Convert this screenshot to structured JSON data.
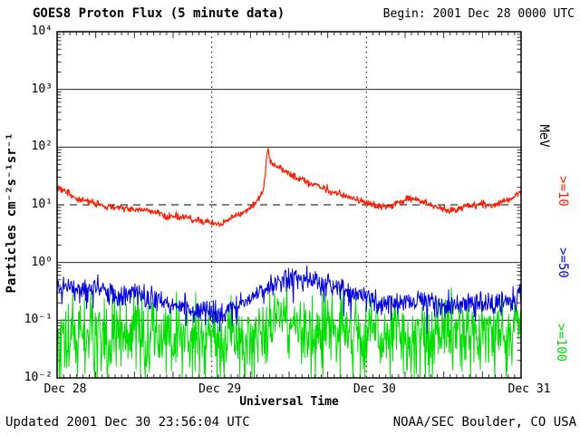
{
  "header": {
    "title": "GOES8 Proton Flux (5 minute data)",
    "begin_label": "Begin: 2001 Dec 28 0000 UTC"
  },
  "footer": {
    "updated_label": "Updated 2001 Dec 30 23:56:04 UTC",
    "credit_label": "NOAA/SEC Boulder, CO USA"
  },
  "axes": {
    "x_label": "Universal Time",
    "y_label": "Particles cm⁻²s⁻¹sr⁻¹"
  },
  "right_axis": {
    "unit": "MeV",
    "labels": [
      {
        "text": ">=10",
        "color": "#fe1b00"
      },
      {
        "text": ">=50",
        "color": "#0000dd"
      },
      {
        "text": ">=100",
        "color": "#00dd00"
      }
    ]
  },
  "chart_data": {
    "type": "line",
    "title": "GOES8 Proton Flux (5 minute data)",
    "xlabel": "Universal Time",
    "ylabel": "Particles cm-2 s-1 sr-1 (log scale)",
    "x_unit": "hours since 2001 Dec 28 0000 UTC",
    "xlim": [
      0,
      72
    ],
    "ylim_log10": [
      -2,
      4
    ],
    "samples_per_hour": 12,
    "grid": true,
    "threshold": {
      "value": 10,
      "style": "dashed"
    },
    "day_lines_hours": [
      24,
      48
    ],
    "x_ticks": [
      {
        "hour": 0,
        "label": "Dec 28"
      },
      {
        "hour": 24,
        "label": "Dec 29"
      },
      {
        "hour": 48,
        "label": "Dec 30"
      },
      {
        "hour": 72,
        "label": "Dec 31"
      }
    ],
    "y_ticks": [
      {
        "exp": 4,
        "label": "10⁴"
      },
      {
        "exp": 3,
        "label": "10³"
      },
      {
        "exp": 2,
        "label": "10²"
      },
      {
        "exp": 1,
        "label": "10¹"
      },
      {
        "exp": 0,
        "label": "10⁰"
      },
      {
        "exp": -1,
        "label": "10⁻¹"
      },
      {
        "exp": -2,
        "label": "10⁻²"
      }
    ],
    "series": [
      {
        "name": ">=10 MeV",
        "color": "#fe1b00",
        "width": 1.2,
        "floor": 0.001,
        "cap": 9000,
        "noise": {
          "sigma_log10": 0.03,
          "spike_p": 0,
          "spike_mag": 0
        },
        "points": [
          [
            0,
            20
          ],
          [
            1,
            17
          ],
          [
            2,
            15
          ],
          [
            3,
            13
          ],
          [
            4,
            12
          ],
          [
            5,
            11
          ],
          [
            6,
            10.5
          ],
          [
            7,
            10
          ],
          [
            8,
            9.5
          ],
          [
            9,
            9
          ],
          [
            10,
            9
          ],
          [
            11,
            8.5
          ],
          [
            12,
            8
          ],
          [
            13,
            8.5
          ],
          [
            14,
            8
          ],
          [
            15,
            7.5
          ],
          [
            16,
            7
          ],
          [
            17,
            6.5
          ],
          [
            18,
            6.5
          ],
          [
            19,
            6
          ],
          [
            20,
            6
          ],
          [
            21,
            5.5
          ],
          [
            22,
            5.5
          ],
          [
            23,
            5
          ],
          [
            24,
            5
          ],
          [
            25,
            4.6
          ],
          [
            25.5,
            4.4
          ],
          [
            26,
            5
          ],
          [
            26.5,
            5.5
          ],
          [
            27,
            6
          ],
          [
            28,
            6.5
          ],
          [
            29,
            7.5
          ],
          [
            30,
            9
          ],
          [
            30.5,
            10
          ],
          [
            31,
            12
          ],
          [
            31.5,
            14
          ],
          [
            32,
            18
          ],
          [
            32.3,
            30
          ],
          [
            32.6,
            95
          ],
          [
            32.9,
            70
          ],
          [
            33.2,
            55
          ],
          [
            33.6,
            50
          ],
          [
            34,
            46
          ],
          [
            34.5,
            42
          ],
          [
            35,
            40
          ],
          [
            35.5,
            38
          ],
          [
            36,
            36
          ],
          [
            36.5,
            33
          ],
          [
            37,
            30
          ],
          [
            38,
            27
          ],
          [
            39,
            24
          ],
          [
            40,
            22
          ],
          [
            41,
            20
          ],
          [
            42,
            18
          ],
          [
            43,
            16
          ],
          [
            44,
            15
          ],
          [
            45,
            14
          ],
          [
            46,
            13
          ],
          [
            47,
            12
          ],
          [
            48,
            11
          ],
          [
            49,
            10
          ],
          [
            50,
            9.5
          ],
          [
            51,
            9
          ],
          [
            52,
            10
          ],
          [
            53,
            11
          ],
          [
            54,
            12
          ],
          [
            55,
            13
          ],
          [
            56,
            12
          ],
          [
            57,
            11
          ],
          [
            58,
            10
          ],
          [
            59,
            9
          ],
          [
            60,
            8.5
          ],
          [
            61,
            8
          ],
          [
            62,
            8.5
          ],
          [
            63,
            9
          ],
          [
            64,
            10
          ],
          [
            65,
            10
          ],
          [
            66,
            11
          ],
          [
            67,
            10
          ],
          [
            68,
            10
          ],
          [
            69,
            11
          ],
          [
            70,
            12
          ],
          [
            71,
            14
          ],
          [
            72,
            17
          ]
        ]
      },
      {
        "name": ">=50 MeV",
        "color": "#0000dd",
        "width": 1,
        "floor": 0.02,
        "cap": 2,
        "noise": {
          "sigma_log10": 0.1,
          "spike_p": 0.05,
          "spike_mag": 0.35
        },
        "points": [
          [
            0,
            0.4
          ],
          [
            1,
            0.38
          ],
          [
            2,
            0.35
          ],
          [
            3,
            0.33
          ],
          [
            4,
            0.32
          ],
          [
            5,
            0.34
          ],
          [
            6,
            0.35
          ],
          [
            7,
            0.32
          ],
          [
            8,
            0.3
          ],
          [
            9,
            0.27
          ],
          [
            10,
            0.26
          ],
          [
            11,
            0.28
          ],
          [
            12,
            0.3
          ],
          [
            13,
            0.27
          ],
          [
            14,
            0.25
          ],
          [
            15,
            0.22
          ],
          [
            16,
            0.2
          ],
          [
            17,
            0.2
          ],
          [
            18,
            0.19
          ],
          [
            19,
            0.18
          ],
          [
            20,
            0.17
          ],
          [
            21,
            0.16
          ],
          [
            22,
            0.15
          ],
          [
            23,
            0.14
          ],
          [
            24,
            0.13
          ],
          [
            25,
            0.12
          ],
          [
            26,
            0.14
          ],
          [
            27,
            0.16
          ],
          [
            28,
            0.18
          ],
          [
            29,
            0.2
          ],
          [
            30,
            0.24
          ],
          [
            31,
            0.28
          ],
          [
            32,
            0.35
          ],
          [
            33,
            0.42
          ],
          [
            34,
            0.45
          ],
          [
            35,
            0.5
          ],
          [
            36,
            0.55
          ],
          [
            37,
            0.58
          ],
          [
            38,
            0.55
          ],
          [
            39,
            0.5
          ],
          [
            40,
            0.48
          ],
          [
            41,
            0.45
          ],
          [
            42,
            0.42
          ],
          [
            43,
            0.4
          ],
          [
            44,
            0.38
          ],
          [
            45,
            0.33
          ],
          [
            46,
            0.3
          ],
          [
            47,
            0.27
          ],
          [
            48,
            0.24
          ],
          [
            49,
            0.22
          ],
          [
            50,
            0.21
          ],
          [
            51,
            0.2
          ],
          [
            52,
            0.19
          ],
          [
            53,
            0.2
          ],
          [
            54,
            0.21
          ],
          [
            55,
            0.22
          ],
          [
            56,
            0.22
          ],
          [
            57,
            0.21
          ],
          [
            58,
            0.2
          ],
          [
            59,
            0.19
          ],
          [
            60,
            0.18
          ],
          [
            61,
            0.17
          ],
          [
            62,
            0.17
          ],
          [
            63,
            0.18
          ],
          [
            64,
            0.18
          ],
          [
            65,
            0.19
          ],
          [
            66,
            0.2
          ],
          [
            67,
            0.2
          ],
          [
            68,
            0.2
          ],
          [
            69,
            0.21
          ],
          [
            70,
            0.22
          ],
          [
            71,
            0.23
          ],
          [
            72,
            0.25
          ]
        ]
      },
      {
        "name": ">=100 MeV",
        "color": "#00dd00",
        "width": 1,
        "floor": 0.0105,
        "cap": 0.45,
        "noise": {
          "sigma_log10": 0.28,
          "spike_p": 0.3,
          "spike_mag": 0.75
        },
        "points": [
          [
            0,
            0.07
          ],
          [
            6,
            0.07
          ],
          [
            12,
            0.065
          ],
          [
            18,
            0.06
          ],
          [
            24,
            0.055
          ],
          [
            28,
            0.06
          ],
          [
            30,
            0.065
          ],
          [
            32,
            0.08
          ],
          [
            33,
            0.1
          ],
          [
            34,
            0.12
          ],
          [
            35,
            0.12
          ],
          [
            36,
            0.11
          ],
          [
            37,
            0.1
          ],
          [
            38,
            0.09
          ],
          [
            40,
            0.08
          ],
          [
            44,
            0.075
          ],
          [
            48,
            0.07
          ],
          [
            54,
            0.07
          ],
          [
            60,
            0.065
          ],
          [
            66,
            0.07
          ],
          [
            72,
            0.07
          ]
        ]
      }
    ]
  }
}
